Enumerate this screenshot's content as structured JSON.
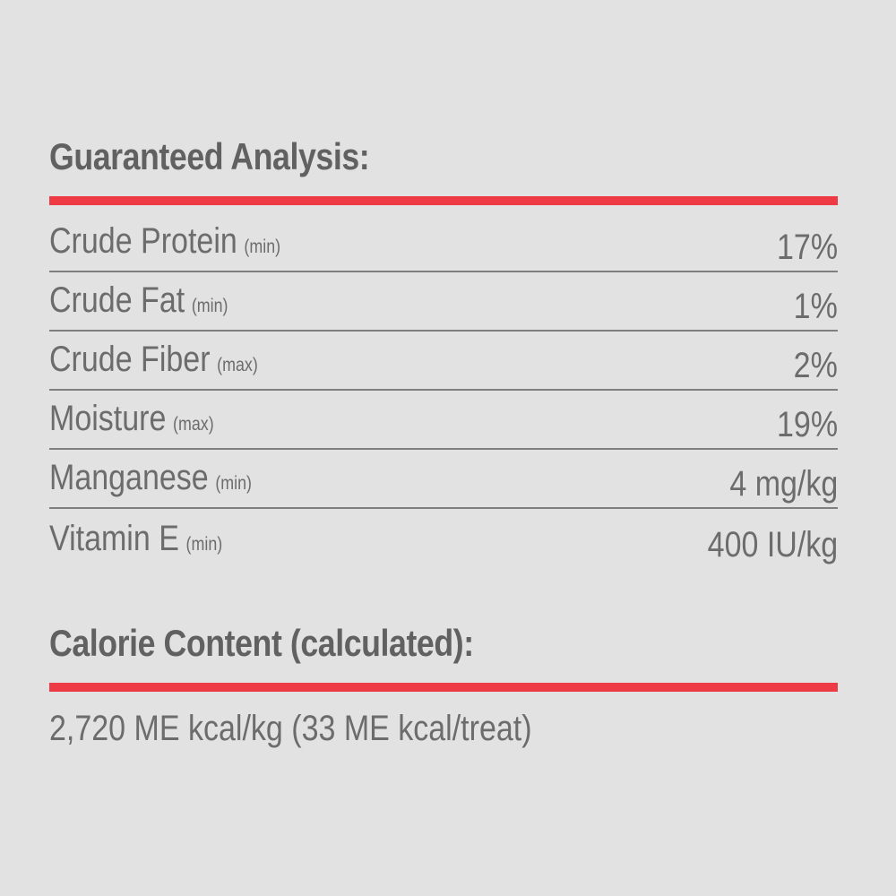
{
  "page": {
    "background_color": "#e3e2e3",
    "accent_color": "#ee3a44",
    "heading_color": "#616161",
    "body_text_color": "#6c6c6c",
    "divider_color": "#7f7f7f"
  },
  "guaranteed_analysis": {
    "title": "Guaranteed Analysis:",
    "rows": [
      {
        "nutrient": "Crude Protein",
        "basis": "(min)",
        "value": "17%"
      },
      {
        "nutrient": "Crude Fat",
        "basis": "(min)",
        "value": "1%"
      },
      {
        "nutrient": "Crude Fiber",
        "basis": "(max)",
        "value": "2%"
      },
      {
        "nutrient": "Moisture",
        "basis": "(max)",
        "value": "19%"
      },
      {
        "nutrient": "Manganese",
        "basis": "(min)",
        "value": "4 mg/kg"
      },
      {
        "nutrient": "Vitamin E",
        "basis": "(min)",
        "value": "400 IU/kg"
      }
    ]
  },
  "calorie_content": {
    "title": "Calorie Content (calculated):",
    "value": "2,720 ME kcal/kg (33 ME kcal/treat)"
  }
}
